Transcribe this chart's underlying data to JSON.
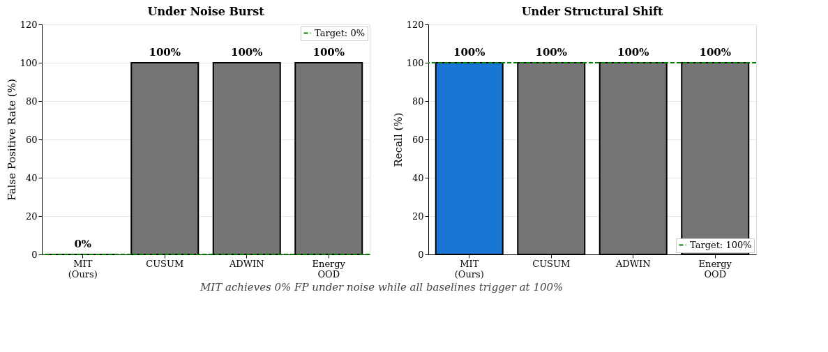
{
  "chart_data": [
    {
      "type": "bar",
      "title": "Under Noise Burst",
      "ylabel": "False Positive Rate (%)",
      "categories": [
        "MIT\n(Ours)",
        "CUSUM",
        "ADWIN",
        "Energy\nOOD"
      ],
      "values": [
        0,
        100,
        100,
        100
      ],
      "colors": [
        "#000000",
        "#757575",
        "#757575",
        "#757575"
      ],
      "value_labels": [
        "0%",
        "100%",
        "100%",
        "100%"
      ],
      "ylim": [
        0,
        120
      ],
      "yticks": [
        0,
        20,
        40,
        60,
        80,
        100,
        120
      ],
      "grid": "y",
      "legend": "top right",
      "ref_lines": [
        {
          "axis": "y",
          "value": 0,
          "label": "Target: 0%",
          "color": "#008000",
          "line_style": "dashed"
        }
      ],
      "annotations": [
        "MIT achieves 0% FP under noise while all baselines trigger at 100%"
      ]
    },
    {
      "type": "bar",
      "title": "Under Structural Shift",
      "ylabel": "Recall (%)",
      "categories": [
        "MIT\n(Ours)",
        "CUSUM",
        "ADWIN",
        "Energy\nOOD"
      ],
      "values": [
        100,
        100,
        100,
        100
      ],
      "colors": [
        "#1976d2",
        "#757575",
        "#757575",
        "#757575"
      ],
      "value_labels": [
        "100%",
        "100%",
        "100%",
        "100%"
      ],
      "ylim": [
        0,
        120
      ],
      "yticks": [
        0,
        20,
        40,
        60,
        80,
        100,
        120
      ],
      "grid": "y",
      "legend": "bottom right",
      "ref_lines": [
        {
          "axis": "y",
          "value": 100,
          "label": "Target: 100%",
          "color": "#008000",
          "line_style": "dashed"
        }
      ]
    }
  ]
}
